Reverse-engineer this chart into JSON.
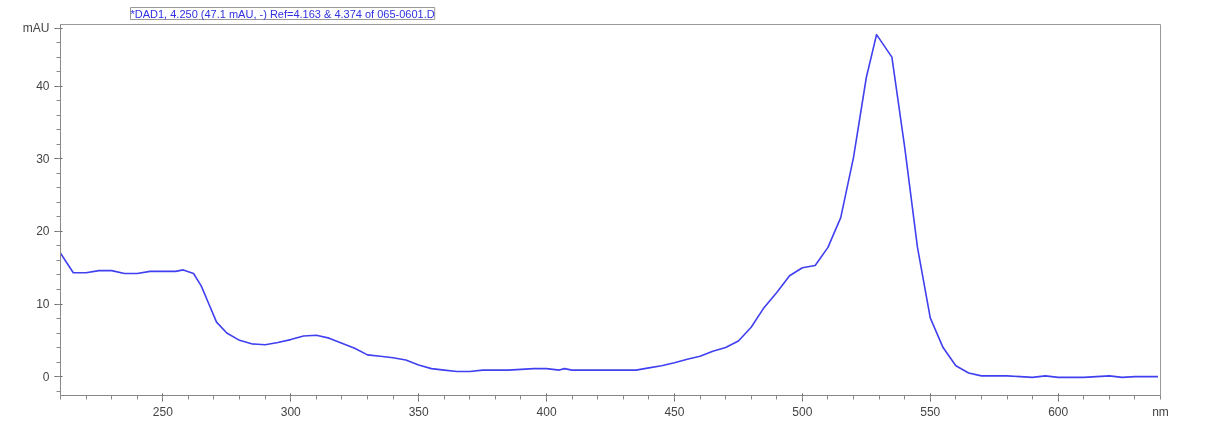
{
  "chart_data": {
    "type": "line",
    "title": "*DAD1, 4.250 (47.1 mAU, -) Ref=4.163 & 4.374 of 065-0601.D",
    "xlabel": "nm",
    "x": [
      210,
      215,
      220,
      225,
      230,
      235,
      240,
      245,
      250,
      255,
      258,
      262,
      265,
      268,
      271,
      275,
      280,
      285,
      290,
      295,
      300,
      305,
      310,
      315,
      320,
      325,
      330,
      335,
      340,
      345,
      350,
      355,
      360,
      365,
      370,
      375,
      380,
      385,
      390,
      395,
      400,
      405,
      407,
      410,
      420,
      430,
      435,
      440,
      445,
      450,
      455,
      460,
      465,
      470,
      475,
      480,
      485,
      490,
      495,
      500,
      505,
      510,
      515,
      520,
      525,
      529,
      535,
      540,
      545,
      550,
      555,
      560,
      565,
      570,
      580,
      590,
      595,
      600,
      610,
      620,
      625,
      630,
      639
    ],
    "series": [
      {
        "color": "#4040f0",
        "values": [
          17,
          14.3,
          14.3,
          14.6,
          14.6,
          14.2,
          14.2,
          14.5,
          14.5,
          14.5,
          14.7,
          14.2,
          12.5,
          10,
          7.5,
          6,
          5,
          4.5,
          4.4,
          4.7,
          5.1,
          5.6,
          5.7,
          5.3,
          4.6,
          3.9,
          3.0,
          2.8,
          2.6,
          2.3,
          1.6,
          1.1,
          0.9,
          0.7,
          0.7,
          0.9,
          0.9,
          0.9,
          1.0,
          1.1,
          1.1,
          0.9,
          1.1,
          0.9,
          0.9,
          0.9,
          0.9,
          1.2,
          1.5,
          1.9,
          2.4,
          2.8,
          3.5,
          4.0,
          4.9,
          6.8,
          9.5,
          11.6,
          13.9,
          15.0,
          15.3,
          17.8,
          21.9,
          30.2,
          41.2,
          47.1,
          44,
          31.6,
          17.8,
          8.1,
          4,
          1.5,
          0.5,
          0.1,
          0.1,
          -0.1,
          0.1,
          -0.1,
          -0.1,
          0.1,
          -0.1,
          0.0,
          0.0
        ]
      }
    ],
    "xlim": [
      210,
      640
    ],
    "xticks": [
      250,
      300,
      350,
      400,
      450,
      500,
      550,
      600
    ],
    "ylim": [
      -2.6,
      48.5
    ],
    "yticks": [
      0,
      10,
      20,
      30,
      40,
      {
        "value": 48,
        "label": "mAU"
      }
    ],
    "grid": false,
    "marker": "none",
    "line_style": "solid"
  }
}
